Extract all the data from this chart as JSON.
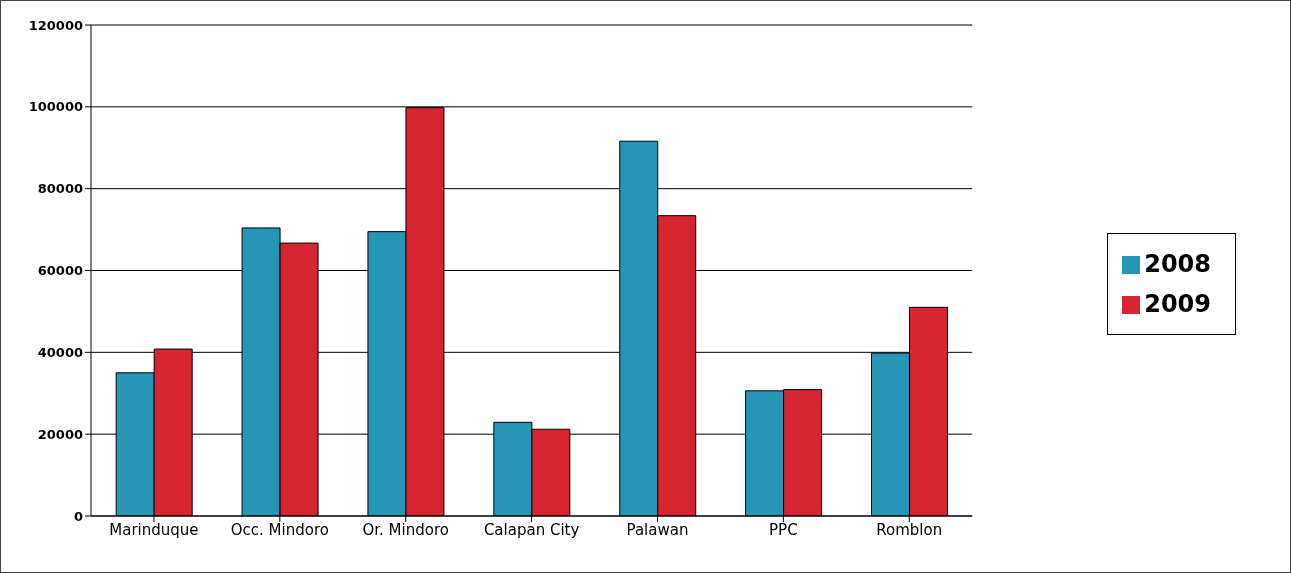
{
  "chart_data": {
    "type": "bar",
    "categories": [
      "Marinduque",
      "Occ. Mindoro",
      "Or. Mindoro",
      "Calapan City",
      "Palawan",
      "PPC",
      "Romblon"
    ],
    "series": [
      {
        "name": "2008",
        "color": "#2596b5",
        "values": [
          35000,
          70400,
          69500,
          22900,
          91600,
          30600,
          39800
        ]
      },
      {
        "name": "2009",
        "color": "#d62430",
        "values": [
          40800,
          66700,
          99800,
          21200,
          73400,
          30900,
          51000
        ]
      }
    ],
    "ylim": [
      0,
      120000
    ],
    "yticks": [
      0,
      20000,
      40000,
      60000,
      80000,
      100000,
      120000
    ],
    "grid": "y",
    "legend": "right"
  }
}
